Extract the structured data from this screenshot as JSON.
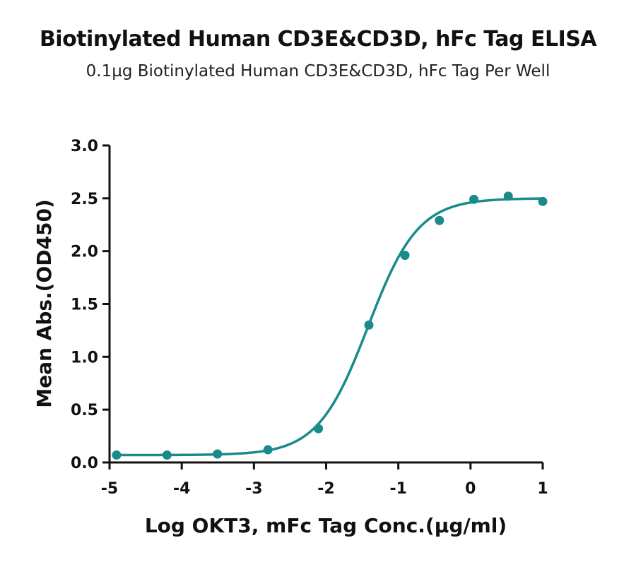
{
  "chart_data": {
    "type": "scatter",
    "title": "Biotinylated Human CD3E&CD3D, hFc Tag ELISA",
    "subtitle": "0.1µg Biotinylated Human CD3E&CD3D, hFc Tag Per Well",
    "xlabel": "Log OKT3, mFc Tag Conc.(µg/ml)",
    "ylabel": "Mean Abs.(OD450)",
    "xlim": [
      -5,
      1
    ],
    "ylim": [
      0,
      3.0
    ],
    "x_ticks": [
      "-5",
      "-4",
      "-3",
      "-2",
      "-1",
      "0",
      "1"
    ],
    "y_ticks": [
      "0.0",
      "0.5",
      "1.0",
      "1.5",
      "2.0",
      "2.5",
      "3.0"
    ],
    "grid": false,
    "color": "#1a8a8a",
    "series": [
      {
        "x": [
          -4.903,
          -4.204,
          -3.505,
          -2.806,
          -2.107,
          -1.408,
          -0.908,
          -0.431,
          0.046,
          0.523,
          1.0
        ],
        "y": [
          0.07,
          0.07,
          0.08,
          0.12,
          0.32,
          1.3,
          1.96,
          2.29,
          2.49,
          2.52,
          2.47
        ]
      }
    ],
    "fit_curve": {
      "model": "4PL",
      "bottom": 0.07,
      "top": 2.5,
      "log_ec50": -1.42,
      "hill_slope": 1.25
    }
  }
}
